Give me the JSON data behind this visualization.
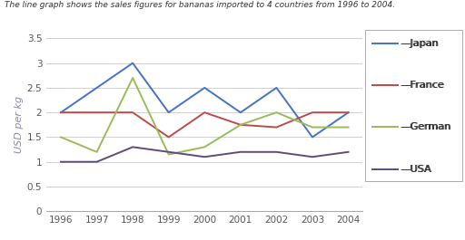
{
  "title": "The line graph shows the sales figures for bananas imported to 4 countries from 1996 to 2004.",
  "ylabel": "USD per kg",
  "years": [
    1996,
    1997,
    1998,
    1999,
    2000,
    2001,
    2002,
    2003,
    2004
  ],
  "series": {
    "Japan": [
      2.0,
      2.5,
      3.0,
      2.0,
      2.5,
      2.0,
      2.5,
      1.5,
      2.0
    ],
    "France": [
      2.0,
      2.0,
      2.0,
      1.5,
      2.0,
      1.75,
      1.7,
      2.0,
      2.0
    ],
    "German": [
      1.5,
      1.2,
      2.7,
      1.15,
      1.3,
      1.75,
      2.0,
      1.7,
      1.7
    ],
    "USA": [
      1.0,
      1.0,
      1.3,
      1.2,
      1.1,
      1.2,
      1.2,
      1.1,
      1.2
    ]
  },
  "colors": {
    "Japan": "#4472C4",
    "France": "#BE4B48",
    "German": "#9BBB59",
    "USA": "#604A7B"
  },
  "ylim": [
    0,
    3.5
  ],
  "yticks": [
    0,
    0.5,
    1.0,
    1.5,
    2.0,
    2.5,
    3.0,
    3.5
  ],
  "ytick_labels": [
    "0",
    "0.5",
    "1",
    "1.5",
    "2",
    "2.5",
    "3",
    "3.5"
  ],
  "title_fontsize": 6.5,
  "tick_fontsize": 7.5,
  "ylabel_fontsize": 8,
  "legend_fontsize": 8,
  "bg_color": "#ffffff",
  "grid_color": "#d0d0d0",
  "linewidth": 1.4
}
